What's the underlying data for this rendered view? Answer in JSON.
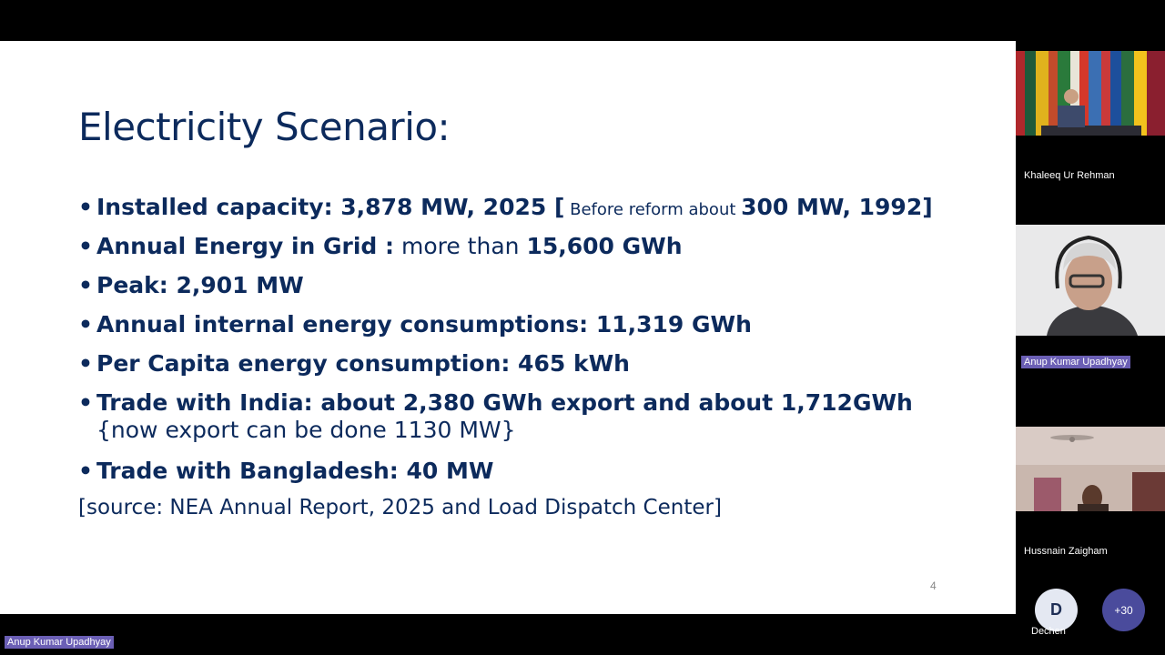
{
  "slide": {
    "title": "Electricity Scenario:",
    "bullet_char": "•",
    "bullets": [
      {
        "bold1": "Installed capacity: 3,878 MW, 2025 [",
        "small": " Before reform about ",
        "bold2": "300 MW, 1992]"
      },
      {
        "bold1": "Annual Energy in Grid :",
        "normal": " more than ",
        "bold2": "15,600 GWh"
      },
      {
        "bold1": "Peak: 2,901 MW"
      },
      {
        "bold1": "Annual internal energy consumptions: 11,319 GWh"
      },
      {
        "bold1": "Per Capita energy consumption: 465 kWh"
      },
      {
        "bold1": "Trade with India: about 2,380 GWh export and about 1,712GWh",
        "sub": "{now export can be done 1130 MW}"
      },
      {
        "bold1": "Trade with Bangladesh: 40 MW"
      }
    ],
    "source": "[source: NEA Annual Report, 2025 and Load Dispatch Center]",
    "page_number": "4"
  },
  "participants": [
    {
      "name": "Khaleeq Ur Rehman"
    },
    {
      "name": "Anup Kumar Upadhyay",
      "speaking": true
    },
    {
      "name": "Hussnain Zaigham"
    }
  ],
  "gallery": {
    "avatar_initial": "D",
    "avatar_name": "Dechen",
    "more_count": "+30"
  },
  "active_speaker_label": "Anup Kumar Upadhyay",
  "colors": {
    "slide_text": "#0c2a5c",
    "highlight": "#6b5fb5",
    "more_button": "#4a4b9c"
  }
}
